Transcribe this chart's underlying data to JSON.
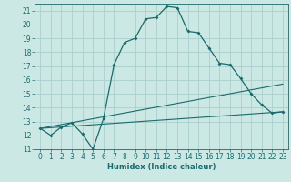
{
  "xlabel": "Humidex (Indice chaleur)",
  "bg_color": "#cce8e5",
  "line_color": "#1a6b6b",
  "grid_color": "#aacfcc",
  "xlim": [
    -0.5,
    23.5
  ],
  "ylim": [
    11,
    21.5
  ],
  "yticks": [
    11,
    12,
    13,
    14,
    15,
    16,
    17,
    18,
    19,
    20,
    21
  ],
  "xticks": [
    0,
    1,
    2,
    3,
    4,
    5,
    6,
    7,
    8,
    9,
    10,
    11,
    12,
    13,
    14,
    15,
    16,
    17,
    18,
    19,
    20,
    21,
    22,
    23
  ],
  "series1_x": [
    0,
    1,
    2,
    3,
    4,
    5,
    6,
    7,
    8,
    9,
    10,
    11,
    12,
    13,
    14,
    15,
    16,
    17,
    18,
    19,
    20,
    21,
    22,
    23
  ],
  "series1_y": [
    12.5,
    12.0,
    12.6,
    12.9,
    12.1,
    11.0,
    13.2,
    17.1,
    18.7,
    19.0,
    20.4,
    20.5,
    21.3,
    21.2,
    19.5,
    19.4,
    18.3,
    17.2,
    17.1,
    16.1,
    15.0,
    14.2,
    13.6,
    13.7
  ],
  "series3_x": [
    0,
    23
  ],
  "series3_y": [
    12.5,
    15.7
  ],
  "series4_x": [
    0,
    23
  ],
  "series4_y": [
    12.5,
    13.7
  ]
}
